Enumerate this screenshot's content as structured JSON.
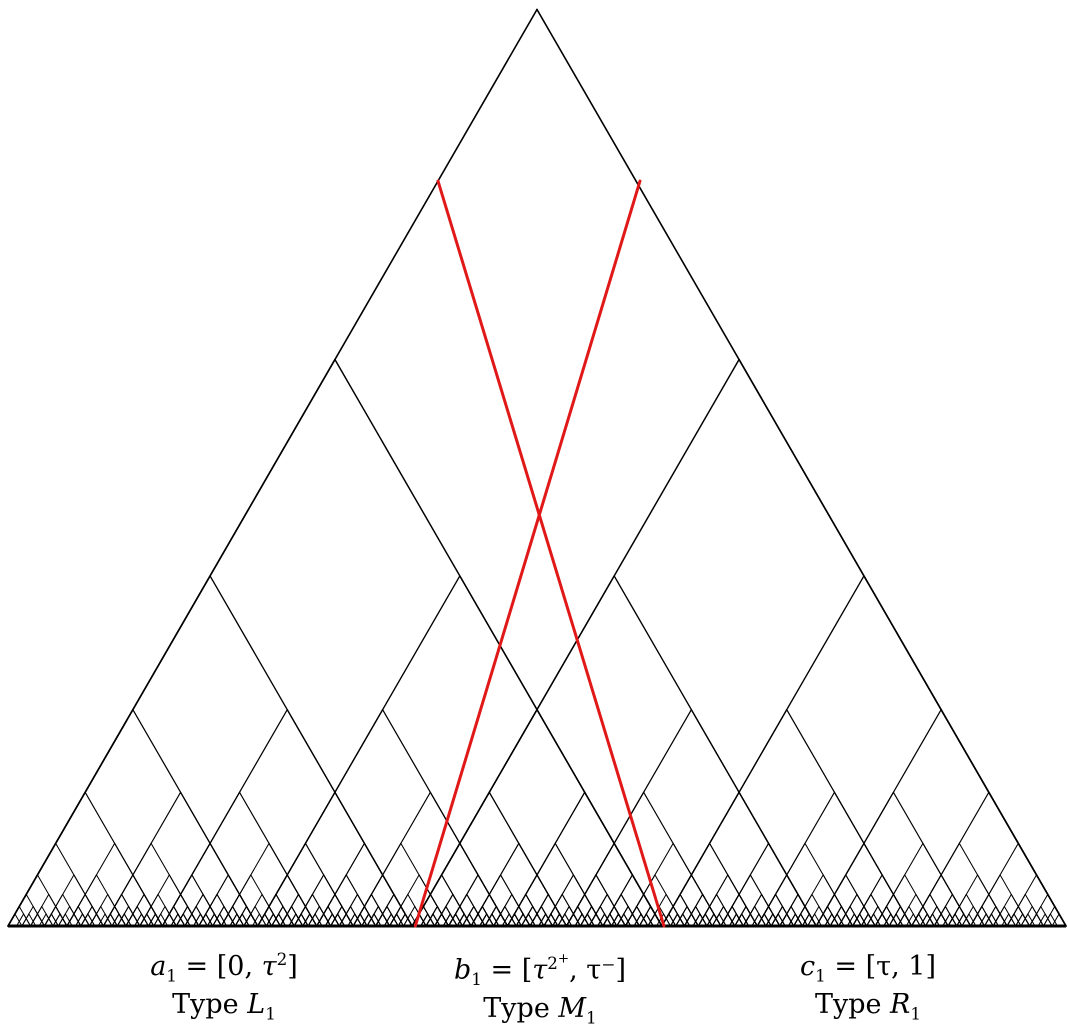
{
  "diagram": {
    "tree_depth": 9,
    "colors": {
      "tree_line": "#000000",
      "highlight": "#e01818",
      "background": "#ffffff"
    },
    "highlight_crossing": "red lines crossing the middle interval"
  },
  "labels": [
    {
      "var": "a",
      "sub": "1",
      "interval_open": "[0, ",
      "interval_tau": "τ",
      "interval_sup": "2",
      "interval_sup2": "",
      "interval_rest": "]",
      "type_prefix": "Type ",
      "type_letter": "L",
      "type_sub": "1"
    },
    {
      "var": "b",
      "sub": "1",
      "interval_open": "[",
      "interval_tau": "τ",
      "interval_sup": "2",
      "interval_sup2": "+",
      "interval_rest": ", τ⁻]",
      "type_prefix": "Type ",
      "type_letter": "M",
      "type_sub": "1"
    },
    {
      "var": "c",
      "sub": "1",
      "interval_open": "[τ, ",
      "interval_tau": "1",
      "interval_sup": "",
      "interval_sup2": "",
      "interval_rest": "]",
      "type_prefix": "Type ",
      "type_letter": "R",
      "type_sub": "1"
    }
  ]
}
